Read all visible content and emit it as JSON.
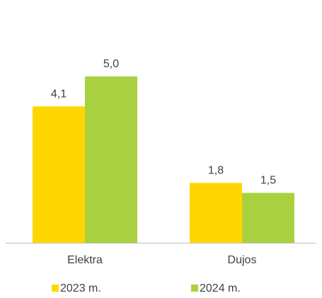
{
  "chart_data": {
    "type": "bar",
    "categories": [
      "Elektra",
      "Dujos"
    ],
    "series": [
      {
        "name": "2023 m.",
        "values": [
          4.1,
          1.8
        ],
        "color": "#FFD700"
      },
      {
        "name": "2024 m.",
        "values": [
          5.0,
          1.5
        ],
        "color": "#A9D13F"
      }
    ],
    "value_labels": [
      [
        "4,1",
        "1,8"
      ],
      [
        "5,0",
        "1,5"
      ]
    ],
    "ylim": [
      0,
      6.0
    ],
    "grid": false,
    "legend_position": "bottom",
    "axis_color": "#BFBFBF",
    "label_color": "#404040"
  }
}
